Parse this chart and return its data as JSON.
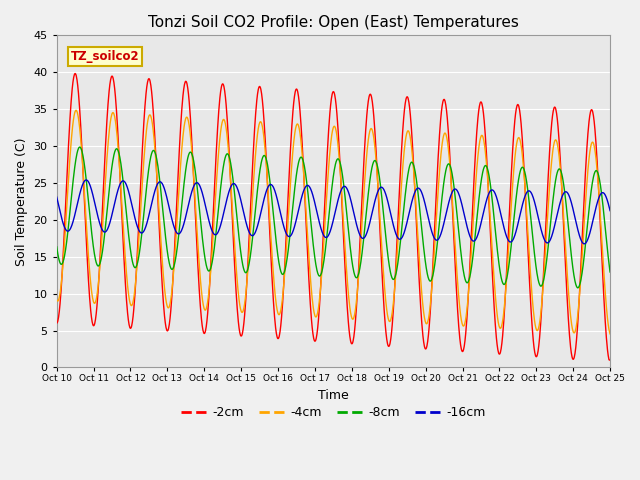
{
  "title": "Tonzi Soil CO2 Profile: Open (East) Temperatures",
  "xlabel": "Time",
  "ylabel": "Soil Temperature (C)",
  "ylim": [
    0,
    45
  ],
  "xlim": [
    0,
    15
  ],
  "colors": {
    "-2cm": "#ff0000",
    "-4cm": "#ffa500",
    "-8cm": "#00aa00",
    "-16cm": "#0000cc"
  },
  "legend_label": "TZ_soilco2",
  "xtick_labels": [
    "Oct 10",
    "Oct 11",
    "Oct 12",
    "Oct 13",
    "Oct 14",
    "Oct 15",
    "Oct 16",
    "Oct 17",
    "Oct 18",
    "Oct 19",
    "Oct 20",
    "Oct 21",
    "Oct 22",
    "Oct 23",
    "Oct 24",
    "Oct 25"
  ],
  "xtick_positions": [
    0,
    1,
    2,
    3,
    4,
    5,
    6,
    7,
    8,
    9,
    10,
    11,
    12,
    13,
    14,
    15
  ],
  "ytick_values": [
    0,
    5,
    10,
    15,
    20,
    25,
    30,
    35,
    40,
    45
  ],
  "fig_width": 6.4,
  "fig_height": 4.8,
  "dpi": 100
}
